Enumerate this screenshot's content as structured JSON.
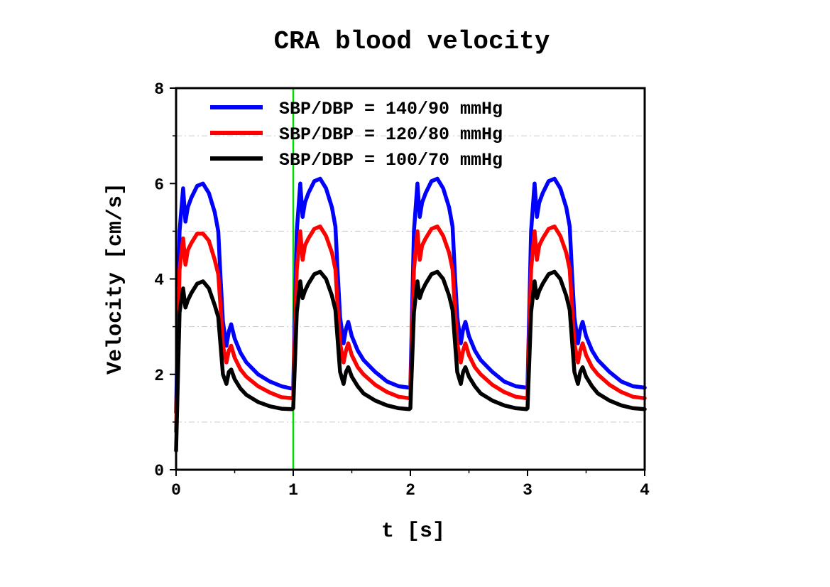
{
  "chart_data": {
    "type": "line",
    "title": "CRA blood velocity",
    "xlabel": "t [s]",
    "ylabel": "Velocity [cm/s]",
    "xlim": [
      0,
      4
    ],
    "ylim": [
      0,
      8
    ],
    "xticks": [
      "0",
      "1",
      "2",
      "3",
      "4"
    ],
    "yticks": [
      "0",
      "2",
      "4",
      "6",
      "8"
    ],
    "grid": "horizontal dash-dot at odd values",
    "legend_position": "top-right",
    "marker_line": {
      "x": 1,
      "color": "#00dd00"
    },
    "series": [
      {
        "name": "SBP/DBP = 140/90 mmHg",
        "color": "#0000ff",
        "x": [
          0.0,
          0.03,
          0.06,
          0.08,
          0.1,
          0.13,
          0.18,
          0.23,
          0.28,
          0.33,
          0.36,
          0.38,
          0.4,
          0.43,
          0.45,
          0.47,
          0.5,
          0.55,
          0.6,
          0.7,
          0.8,
          0.9,
          0.99,
          1.0,
          1.03,
          1.06,
          1.08,
          1.1,
          1.13,
          1.18,
          1.23,
          1.28,
          1.33,
          1.36,
          1.38,
          1.4,
          1.43,
          1.45,
          1.47,
          1.5,
          1.55,
          1.6,
          1.7,
          1.8,
          1.9,
          1.99,
          2.0,
          2.03,
          2.06,
          2.08,
          2.1,
          2.13,
          2.18,
          2.23,
          2.28,
          2.33,
          2.36,
          2.38,
          2.4,
          2.43,
          2.45,
          2.47,
          2.5,
          2.55,
          2.6,
          2.7,
          2.8,
          2.9,
          2.99,
          3.0,
          3.03,
          3.06,
          3.08,
          3.1,
          3.13,
          3.18,
          3.23,
          3.28,
          3.33,
          3.36,
          3.38,
          3.4,
          3.43,
          3.45,
          3.47,
          3.5,
          3.55,
          3.6,
          3.7,
          3.8,
          3.9,
          4.0
        ],
        "y": [
          1.2,
          5.0,
          5.9,
          5.2,
          5.5,
          5.7,
          5.95,
          6.0,
          5.8,
          5.4,
          5.0,
          4.0,
          3.1,
          2.6,
          2.9,
          3.05,
          2.75,
          2.45,
          2.25,
          2.0,
          1.85,
          1.75,
          1.7,
          1.72,
          5.0,
          6.0,
          5.3,
          5.6,
          5.8,
          6.05,
          6.1,
          5.9,
          5.5,
          5.1,
          4.1,
          3.2,
          2.65,
          2.95,
          3.1,
          2.8,
          2.5,
          2.3,
          2.05,
          1.85,
          1.75,
          1.72,
          1.74,
          5.0,
          6.0,
          5.3,
          5.6,
          5.8,
          6.05,
          6.1,
          5.9,
          5.5,
          5.1,
          4.1,
          3.2,
          2.65,
          2.95,
          3.1,
          2.8,
          2.5,
          2.3,
          2.05,
          1.85,
          1.75,
          1.72,
          1.74,
          5.0,
          6.0,
          5.3,
          5.6,
          5.8,
          6.05,
          6.1,
          5.9,
          5.5,
          5.1,
          4.1,
          3.2,
          2.65,
          2.95,
          3.1,
          2.8,
          2.5,
          2.3,
          2.05,
          1.85,
          1.75,
          1.72
        ]
      },
      {
        "name": "SBP/DBP = 120/80 mmHg",
        "color": "#ff0000",
        "x": [
          0.0,
          0.03,
          0.06,
          0.08,
          0.1,
          0.13,
          0.18,
          0.23,
          0.28,
          0.33,
          0.36,
          0.38,
          0.4,
          0.43,
          0.45,
          0.47,
          0.5,
          0.55,
          0.6,
          0.7,
          0.8,
          0.9,
          0.99,
          1.0,
          1.03,
          1.06,
          1.08,
          1.1,
          1.13,
          1.18,
          1.23,
          1.28,
          1.33,
          1.36,
          1.38,
          1.4,
          1.43,
          1.45,
          1.47,
          1.5,
          1.55,
          1.6,
          1.7,
          1.8,
          1.9,
          1.99,
          2.0,
          2.03,
          2.06,
          2.08,
          2.1,
          2.13,
          2.18,
          2.23,
          2.28,
          2.33,
          2.36,
          2.38,
          2.4,
          2.43,
          2.45,
          2.47,
          2.5,
          2.55,
          2.6,
          2.7,
          2.8,
          2.9,
          2.99,
          3.0,
          3.03,
          3.06,
          3.08,
          3.1,
          3.13,
          3.18,
          3.23,
          3.28,
          3.33,
          3.36,
          3.38,
          3.4,
          3.43,
          3.45,
          3.47,
          3.5,
          3.55,
          3.6,
          3.7,
          3.8,
          3.9,
          4.0
        ],
        "y": [
          0.8,
          4.2,
          4.85,
          4.3,
          4.6,
          4.75,
          4.95,
          4.95,
          4.8,
          4.4,
          4.1,
          3.4,
          2.6,
          2.25,
          2.5,
          2.6,
          2.35,
          2.1,
          1.95,
          1.75,
          1.62,
          1.52,
          1.5,
          1.52,
          4.2,
          5.0,
          4.4,
          4.7,
          4.85,
          5.05,
          5.1,
          4.9,
          4.55,
          4.2,
          3.4,
          2.65,
          2.25,
          2.5,
          2.65,
          2.4,
          2.15,
          2.0,
          1.78,
          1.63,
          1.53,
          1.5,
          1.52,
          4.2,
          5.0,
          4.4,
          4.7,
          4.85,
          5.05,
          5.1,
          4.9,
          4.55,
          4.2,
          3.4,
          2.65,
          2.25,
          2.5,
          2.65,
          2.4,
          2.15,
          2.0,
          1.78,
          1.63,
          1.53,
          1.5,
          1.52,
          4.2,
          5.0,
          4.4,
          4.7,
          4.85,
          5.05,
          5.1,
          4.9,
          4.55,
          4.2,
          3.4,
          2.65,
          2.25,
          2.5,
          2.65,
          2.4,
          2.15,
          2.0,
          1.78,
          1.63,
          1.53,
          1.5
        ]
      },
      {
        "name": "SBP/DBP = 100/70 mmHg",
        "color": "#000000",
        "x": [
          0.0,
          0.03,
          0.06,
          0.08,
          0.1,
          0.13,
          0.18,
          0.23,
          0.28,
          0.33,
          0.36,
          0.38,
          0.4,
          0.43,
          0.45,
          0.47,
          0.5,
          0.55,
          0.6,
          0.7,
          0.8,
          0.9,
          0.99,
          1.0,
          1.03,
          1.06,
          1.08,
          1.1,
          1.13,
          1.18,
          1.23,
          1.28,
          1.33,
          1.36,
          1.38,
          1.4,
          1.43,
          1.45,
          1.47,
          1.5,
          1.55,
          1.6,
          1.7,
          1.8,
          1.9,
          1.99,
          2.0,
          2.03,
          2.06,
          2.08,
          2.1,
          2.13,
          2.18,
          2.23,
          2.28,
          2.33,
          2.36,
          2.38,
          2.4,
          2.43,
          2.45,
          2.47,
          2.5,
          2.55,
          2.6,
          2.7,
          2.8,
          2.9,
          2.99,
          3.0,
          3.03,
          3.06,
          3.08,
          3.1,
          3.13,
          3.18,
          3.23,
          3.28,
          3.33,
          3.36,
          3.38,
          3.4,
          3.43,
          3.45,
          3.47,
          3.5,
          3.55,
          3.6,
          3.7,
          3.8,
          3.9,
          4.0
        ],
        "y": [
          0.4,
          3.3,
          3.8,
          3.4,
          3.55,
          3.7,
          3.9,
          3.95,
          3.8,
          3.45,
          3.2,
          2.6,
          2.0,
          1.8,
          2.05,
          2.1,
          1.9,
          1.7,
          1.57,
          1.42,
          1.33,
          1.28,
          1.27,
          1.29,
          3.3,
          3.95,
          3.6,
          3.75,
          3.9,
          4.1,
          4.15,
          4.0,
          3.65,
          3.35,
          2.7,
          2.05,
          1.8,
          2.05,
          2.15,
          1.95,
          1.75,
          1.6,
          1.45,
          1.35,
          1.29,
          1.27,
          1.29,
          3.3,
          3.95,
          3.6,
          3.75,
          3.9,
          4.1,
          4.15,
          4.0,
          3.65,
          3.35,
          2.7,
          2.05,
          1.8,
          2.05,
          2.15,
          1.95,
          1.75,
          1.6,
          1.45,
          1.35,
          1.29,
          1.27,
          1.29,
          3.3,
          3.95,
          3.6,
          3.75,
          3.9,
          4.1,
          4.15,
          4.0,
          3.65,
          3.35,
          2.7,
          2.05,
          1.8,
          2.05,
          2.15,
          1.95,
          1.75,
          1.6,
          1.45,
          1.35,
          1.29,
          1.27
        ]
      }
    ]
  }
}
